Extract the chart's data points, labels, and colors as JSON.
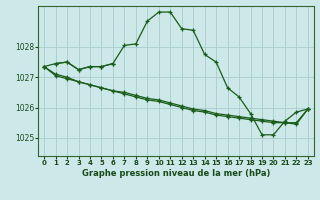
{
  "title": "Graphe pression niveau de la mer (hPa)",
  "bg_color": "#cce8e8",
  "grid_color": "#aacccc",
  "line_color": "#1a5c1a",
  "xlim": [
    -0.5,
    23.5
  ],
  "ylim": [
    1024.4,
    1029.35
  ],
  "yticks": [
    1025,
    1026,
    1027,
    1028
  ],
  "xtick_labels": [
    "0",
    "1",
    "2",
    "3",
    "4",
    "5",
    "6",
    "7",
    "8",
    "9",
    "10",
    "11",
    "12",
    "13",
    "14",
    "15",
    "16",
    "17",
    "18",
    "19",
    "20",
    "21",
    "22",
    "23"
  ],
  "series1_x": [
    0,
    1,
    2,
    3,
    4,
    5,
    6,
    7,
    8,
    9,
    10,
    11,
    12,
    13,
    14,
    15,
    16,
    17,
    18,
    19,
    20,
    21,
    22,
    23
  ],
  "series1_y": [
    1027.35,
    1027.45,
    1027.5,
    1027.25,
    1027.35,
    1027.35,
    1027.45,
    1028.05,
    1028.1,
    1028.85,
    1029.15,
    1029.15,
    1028.6,
    1028.55,
    1027.75,
    1027.5,
    1026.65,
    1026.35,
    1025.8,
    1025.1,
    1025.1,
    1025.55,
    1025.85,
    1025.95
  ],
  "series2_x": [
    0,
    1,
    2,
    3,
    4,
    5,
    6,
    7,
    8,
    9,
    10,
    11,
    12,
    13,
    14,
    15,
    16,
    17,
    18,
    19,
    20,
    21,
    22,
    23
  ],
  "series2_y": [
    1027.35,
    1027.1,
    1027.0,
    1026.85,
    1026.75,
    1026.65,
    1026.55,
    1026.45,
    1026.35,
    1026.25,
    1026.2,
    1026.1,
    1026.0,
    1025.9,
    1025.85,
    1025.75,
    1025.7,
    1025.65,
    1025.6,
    1025.55,
    1025.5,
    1025.5,
    1025.5,
    1025.95
  ],
  "series3_x": [
    0,
    1,
    2,
    3,
    4,
    5,
    6,
    7,
    8,
    9,
    10,
    11,
    12,
    13,
    14,
    15,
    16,
    17,
    18,
    19,
    20,
    21,
    22,
    23
  ],
  "series3_y": [
    1027.35,
    1027.05,
    1026.95,
    1026.85,
    1026.75,
    1026.65,
    1026.55,
    1026.5,
    1026.4,
    1026.3,
    1026.25,
    1026.15,
    1026.05,
    1025.95,
    1025.9,
    1025.8,
    1025.75,
    1025.7,
    1025.65,
    1025.6,
    1025.55,
    1025.5,
    1025.45,
    1025.95
  ],
  "series4_x": [
    1,
    2,
    3,
    4,
    5,
    6
  ],
  "series4_y": [
    1027.45,
    1027.5,
    1027.25,
    1027.35,
    1027.35,
    1027.45
  ]
}
